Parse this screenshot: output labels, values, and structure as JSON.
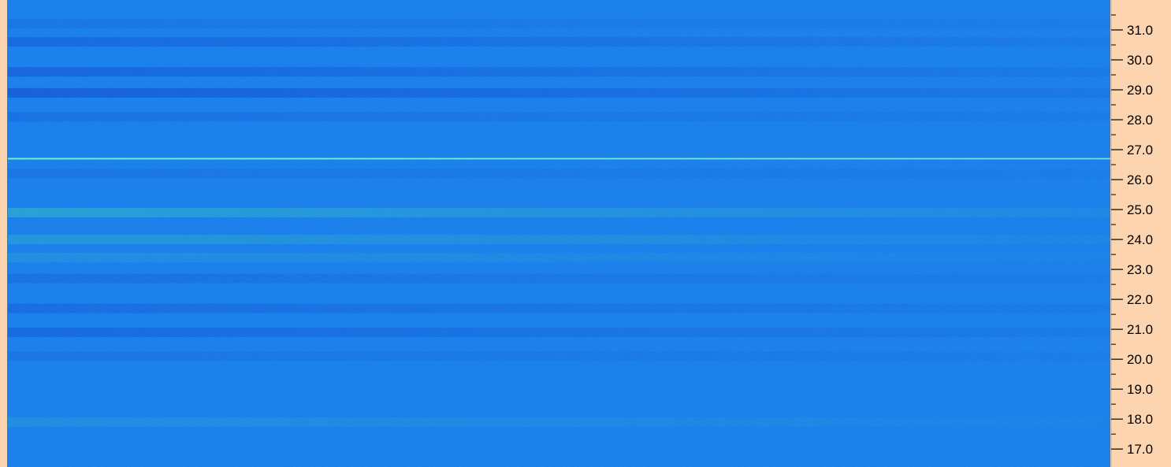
{
  "chart_data": {
    "type": "heatmap",
    "title": "",
    "ylabel": "",
    "ylim": [
      16.4,
      32.0
    ],
    "y_ticks": [
      31.0,
      30.0,
      29.0,
      28.0,
      27.0,
      26.0,
      25.0,
      24.0,
      23.0,
      22.0,
      21.0,
      20.0,
      19.0,
      18.0,
      17.0
    ],
    "y_tick_labels": [
      "31.0",
      "30.0",
      "29.0",
      "28.0",
      "27.0",
      "26.0",
      "25.0",
      "24.0",
      "23.0",
      "22.0",
      "21.0",
      "20.0",
      "19.0",
      "18.0",
      "17.0"
    ],
    "colormap": {
      "low": "#1040c8",
      "mid": "#1a80ea",
      "high": "#40d8b0"
    },
    "background_color": "#1a7fea",
    "axis_panel_color": "#fcd5b0",
    "bands": [
      {
        "y": 31.2,
        "level": -0.3
      },
      {
        "y": 30.6,
        "level": -0.6
      },
      {
        "y": 29.6,
        "level": -0.7
      },
      {
        "y": 28.9,
        "level": -0.9
      },
      {
        "y": 28.1,
        "level": -0.4
      },
      {
        "y": 26.7,
        "level": 1.0
      },
      {
        "y": 26.2,
        "level": -0.3
      },
      {
        "y": 24.9,
        "level": 0.7
      },
      {
        "y": 24.0,
        "level": 0.5
      },
      {
        "y": 23.4,
        "level": 0.3
      },
      {
        "y": 22.7,
        "level": -0.4
      },
      {
        "y": 21.7,
        "level": -0.5
      },
      {
        "y": 20.9,
        "level": -0.6
      },
      {
        "y": 20.1,
        "level": -0.3
      },
      {
        "y": 17.9,
        "level": 0.3
      }
    ]
  }
}
